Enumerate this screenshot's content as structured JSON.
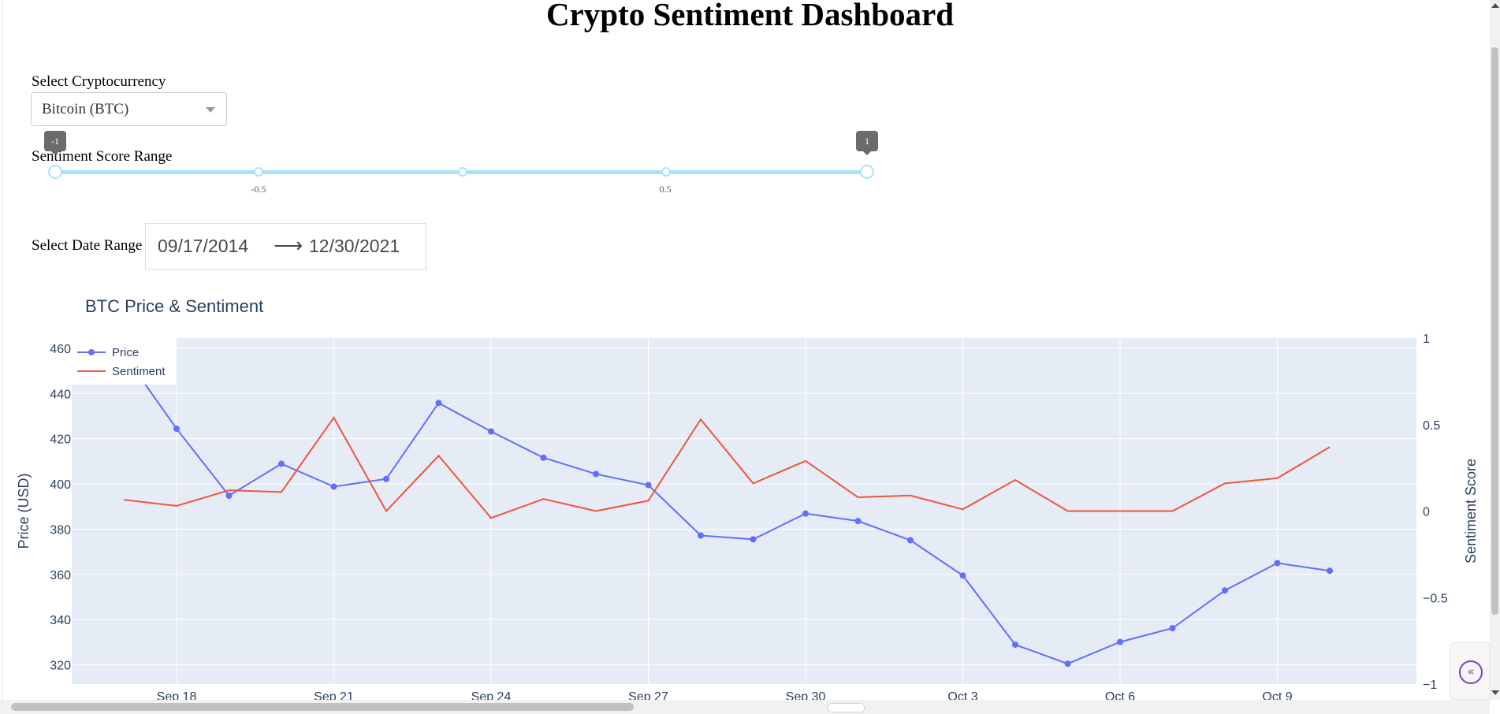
{
  "header": {
    "title": "Crypto Sentiment Dashboard"
  },
  "crypto_select": {
    "label": "Select Cryptocurrency",
    "value": "Bitcoin (BTC)"
  },
  "sentiment_slider": {
    "label": "Sentiment Score Range",
    "min": -1,
    "max": 1,
    "low": -1,
    "high": 1,
    "low_tooltip": "-1",
    "high_tooltip": "1",
    "tick_labels": [
      "-0.5",
      "0.5"
    ]
  },
  "date_range": {
    "label": "Select Date Range",
    "start": "09/17/2014",
    "end": "12/30/2021",
    "arrow": "⟶"
  },
  "chart_data": {
    "type": "line",
    "title": "BTC Price & Sentiment",
    "x": [
      "2014-09-17",
      "2014-09-18",
      "2014-09-19",
      "2014-09-20",
      "2014-09-21",
      "2014-09-22",
      "2014-09-23",
      "2014-09-24",
      "2014-09-25",
      "2014-09-26",
      "2014-09-27",
      "2014-09-28",
      "2014-09-29",
      "2014-09-30",
      "2014-10-01",
      "2014-10-02",
      "2014-10-03",
      "2014-10-04",
      "2014-10-05",
      "2014-10-06",
      "2014-10-07",
      "2014-10-08",
      "2014-10-09",
      "2014-10-10"
    ],
    "x_tick_labels": [
      "Sep 18",
      "Sep 21",
      "Sep 24",
      "Sep 27",
      "Sep 30",
      "Oct 3",
      "Oct 6",
      "Oct 9"
    ],
    "series": [
      {
        "name": "Price",
        "axis": "left",
        "markers": true,
        "color": "#636efa",
        "values": [
          457.3,
          424.4,
          394.8,
          408.9,
          398.8,
          402.2,
          435.8,
          423.2,
          411.6,
          404.4,
          399.5,
          377.2,
          375.5,
          386.9,
          383.6,
          375.1,
          359.5,
          328.9,
          320.5,
          330.1,
          336.2,
          352.9,
          365.0,
          361.6
        ]
      },
      {
        "name": "Sentiment",
        "axis": "right",
        "markers": false,
        "color": "#ef553b",
        "values": [
          0.065,
          0.03,
          0.12,
          0.11,
          0.54,
          0.0,
          0.32,
          -0.04,
          0.07,
          0.0,
          0.06,
          0.53,
          0.16,
          0.29,
          0.08,
          0.09,
          0.01,
          0.18,
          0.0,
          0.0,
          0.0,
          0.16,
          0.19,
          0.37
        ]
      }
    ],
    "ylabel": "Price (USD)",
    "y2label": "Sentiment Score",
    "ylim": [
      311.5,
      464.5
    ],
    "y2lim": [
      -1,
      1
    ],
    "y_ticks": [
      320,
      340,
      360,
      380,
      400,
      420,
      440,
      460
    ],
    "y2_ticks": [
      "1",
      "0.5",
      "0",
      "−0.5",
      "−1"
    ],
    "grid": true,
    "legend_position": "top-left"
  },
  "sidebar_toggle": {
    "icon": "double-chevron-left-icon",
    "glyph": "«"
  }
}
